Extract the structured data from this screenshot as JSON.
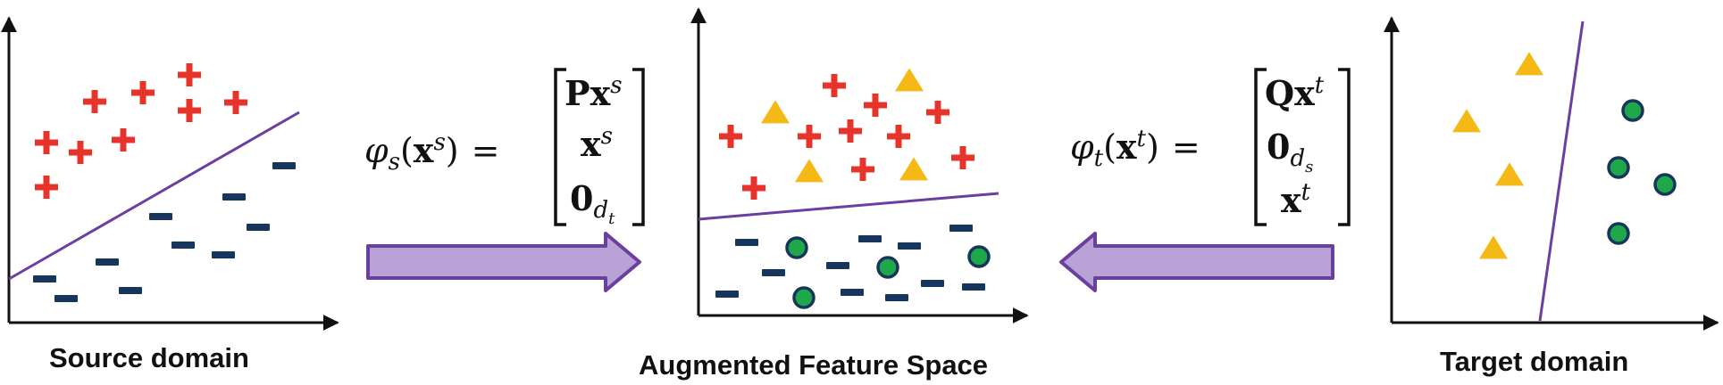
{
  "captions": {
    "source": "Source domain",
    "augmented": "Augmented Feature Space",
    "target": "Target domain"
  },
  "equation_source": {
    "lhs_func": "φ",
    "lhs_sub": "s",
    "lhs_arg_open": "(",
    "lhs_arg_x": "x",
    "lhs_arg_sup": "s",
    "lhs_arg_close": ")",
    "equals": "=",
    "row1_a": "Px",
    "row1_sup": "s",
    "row2_a": "x",
    "row2_sup": "s",
    "row3_a": "0",
    "row3_sub": "d",
    "row3_subsub": "t"
  },
  "equation_target": {
    "lhs_func": "φ",
    "lhs_sub": "t",
    "lhs_arg_open": "(",
    "lhs_arg_x": "x",
    "lhs_arg_sup": "t",
    "lhs_arg_close": ")",
    "equals": "=",
    "row1_a": "Qx",
    "row1_sup": "t",
    "row2_a": "0",
    "row2_sub": "d",
    "row2_subsub": "s",
    "row3_a": "x",
    "row3_sup": "t"
  },
  "colors": {
    "plus": "#e8332a",
    "minus": "#17365d",
    "triangle": "#f5b915",
    "circle_fill": "#1fa84a",
    "circle_stroke": "#17365d",
    "boundary": "#6a3fa0",
    "arrow_fill": "#b9a3d6",
    "arrow_stroke": "#6a3fa0",
    "axis": "#111111"
  },
  "markers": {
    "plus": "plus-marker",
    "minus": "minus-marker",
    "triangle": "triangle-marker",
    "circle": "circle-marker"
  }
}
